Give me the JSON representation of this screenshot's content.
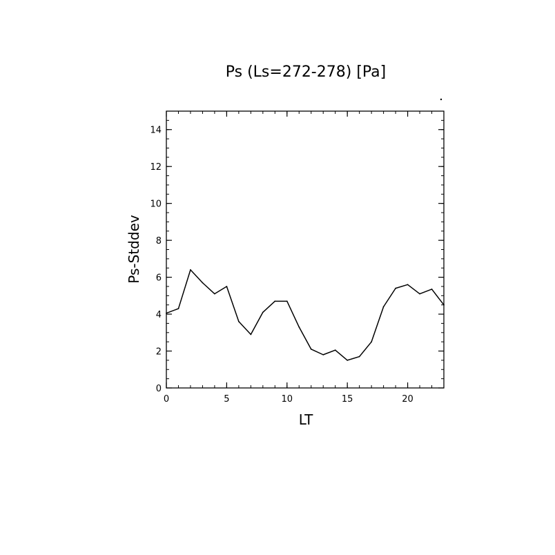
{
  "chart_data": {
    "type": "line",
    "title": "Ps (Ls=272-278) [Pa]",
    "xlabel": "LT",
    "ylabel": "Ps-Stddev",
    "xlim": [
      0,
      23
    ],
    "ylim": [
      0,
      15
    ],
    "x_ticks": [
      0,
      5,
      10,
      15,
      20
    ],
    "y_ticks": [
      0,
      2,
      4,
      6,
      8,
      10,
      12,
      14
    ],
    "x_minor_step": 1,
    "y_minor_step": 0.5,
    "grid": false,
    "line_color": "#000000",
    "series": [
      {
        "x": [
          0,
          1,
          2,
          3,
          4,
          5,
          6,
          7,
          8,
          9,
          10,
          11,
          12,
          13,
          14,
          15,
          16,
          17,
          18,
          19,
          20,
          21,
          22,
          23
        ],
        "values": [
          4.05,
          4.3,
          6.4,
          5.7,
          5.1,
          5.5,
          3.6,
          2.9,
          4.1,
          4.7,
          4.7,
          3.3,
          2.1,
          1.8,
          2.05,
          1.5,
          1.7,
          2.5,
          4.4,
          5.4,
          5.6,
          5.1,
          5.35,
          4.5
        ]
      }
    ]
  }
}
